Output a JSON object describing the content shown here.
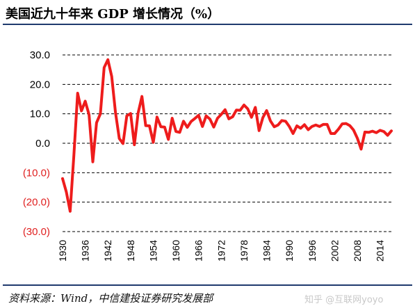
{
  "header": {
    "title": "美国近九十年来 GDP 增长情况（%）"
  },
  "footer": {
    "source": "资料来源：Wind，中信建投证券研究发展部"
  },
  "watermark": {
    "text": "知乎 @互联网yoyo"
  },
  "colors": {
    "line": "#ee1c1c",
    "negative_label": "#e02020",
    "positive_label": "#000000",
    "grid": "#000000",
    "rule": "#1f3a6e"
  },
  "chart_data": {
    "type": "line",
    "title": "美国近九十年来 GDP 增长情况（%）",
    "xlabel": "",
    "ylabel": "",
    "ylim": [
      -30,
      30
    ],
    "xlim": [
      1930,
      2017
    ],
    "grid": "horizontal-dashed",
    "x_tick_labels": [
      "1930",
      "1936",
      "1942",
      "1948",
      "1954",
      "1960",
      "1966",
      "1972",
      "1978",
      "1984",
      "1990",
      "1996",
      "2002",
      "2008",
      "2014"
    ],
    "y_ticks": [
      30,
      20,
      10,
      0,
      -10,
      -20,
      -30
    ],
    "y_tick_labels": [
      "30.0",
      "20.0",
      "10.0",
      "0.0",
      "(10.0)",
      "(20.0)",
      "(30.0)"
    ],
    "series": [
      {
        "color": "#ee1c1c",
        "x": [
          1930,
          1931,
          1932,
          1933,
          1934,
          1935,
          1936,
          1937,
          1938,
          1939,
          1940,
          1941,
          1942,
          1943,
          1944,
          1945,
          1946,
          1947,
          1948,
          1949,
          1950,
          1951,
          1952,
          1953,
          1954,
          1955,
          1956,
          1957,
          1958,
          1959,
          1960,
          1961,
          1962,
          1963,
          1964,
          1965,
          1966,
          1967,
          1968,
          1969,
          1970,
          1971,
          1972,
          1973,
          1974,
          1975,
          1976,
          1977,
          1978,
          1979,
          1980,
          1981,
          1982,
          1983,
          1984,
          1985,
          1986,
          1987,
          1988,
          1989,
          1990,
          1991,
          1992,
          1993,
          1994,
          1995,
          1996,
          1997,
          1998,
          1999,
          2000,
          2001,
          2002,
          2003,
          2004,
          2005,
          2006,
          2007,
          2008,
          2009,
          2010,
          2011,
          2012,
          2013,
          2014,
          2015,
          2016,
          2017
        ],
        "values": [
          -12,
          -16.5,
          -23.1,
          -4,
          17,
          11,
          14.3,
          9.7,
          -6.3,
          7,
          10,
          25.7,
          28.4,
          22.7,
          10.5,
          1.6,
          -0.1,
          9.3,
          10.1,
          -0.5,
          10.3,
          15.9,
          6,
          5.9,
          0.3,
          8.9,
          5.6,
          5.5,
          1.3,
          8.5,
          4,
          3.7,
          7.5,
          5.4,
          7.4,
          8.4,
          9.5,
          5.7,
          9.3,
          8.2,
          5.5,
          8.5,
          9.8,
          11.4,
          8.3,
          9,
          11.3,
          11.2,
          13,
          11.7,
          8.8,
          12.2,
          4.3,
          8.7,
          11.1,
          7.6,
          5.6,
          6.2,
          7.7,
          7.5,
          5.7,
          3.3,
          5.9,
          5.1,
          6.3,
          4.6,
          5.7,
          6.2,
          5.7,
          6.4,
          6.4,
          3.3,
          3.3,
          4.8,
          6.6,
          6.7,
          6,
          4.5,
          1.7,
          -2,
          3.8,
          3.7,
          4.1,
          3.6,
          4.4,
          4,
          2.7,
          4.2
        ]
      }
    ]
  }
}
